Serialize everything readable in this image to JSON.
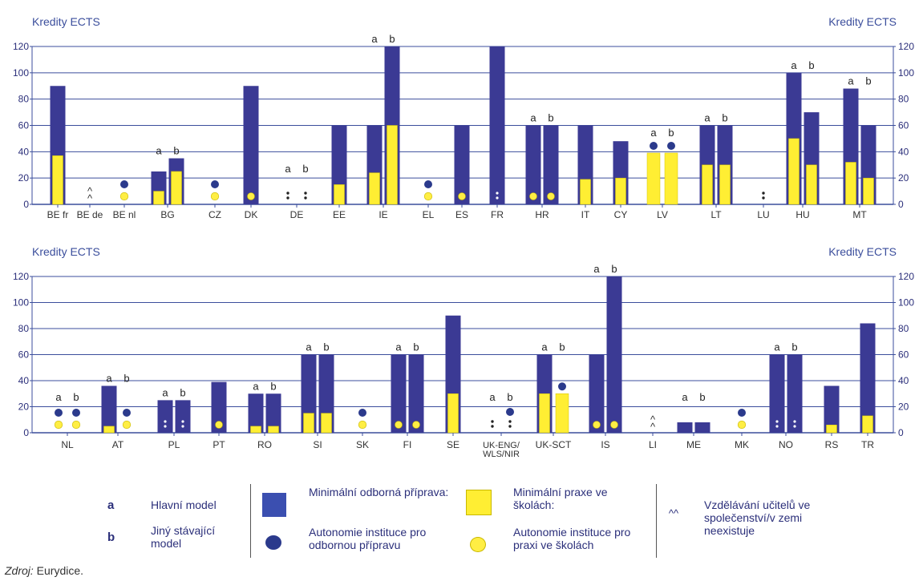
{
  "colors": {
    "bar": "#3b3a94",
    "practice": "#ffee33",
    "axis": "#3b4e9c",
    "text": "#2b2f7a",
    "dot_dark": "#2b3a8c",
    "dot_yellow": "#ffee44"
  },
  "chart_data": [
    {
      "type": "bar",
      "ylabel_left": "Kredity ECTS",
      "ylabel_right": "Kredity ECTS",
      "ylim": [
        0,
        120
      ],
      "yticks": [
        0,
        20,
        40,
        60,
        80,
        100,
        120
      ],
      "grid": true,
      "categories": [
        {
          "label": "BE fr",
          "bars": [
            {
              "total": 90,
              "practice": 37
            }
          ]
        },
        {
          "label": "BE de",
          "not_exist": true
        },
        {
          "label": "BE nl",
          "symbols": [
            {
              "dark": true,
              "yellow": true
            }
          ]
        },
        {
          "label": "BG",
          "sublabels": [
            "a",
            "b"
          ],
          "bars": [
            {
              "total": 25,
              "practice": 10
            },
            {
              "total": 35,
              "practice": 25
            }
          ]
        },
        {
          "label": "CZ",
          "symbols": [
            {
              "dark": true,
              "yellow": true
            }
          ]
        },
        {
          "label": "DK",
          "bars": [
            {
              "total": 90,
              "practice": 0,
              "yellow_dot": true
            }
          ]
        },
        {
          "label": "DE",
          "sublabels": [
            "a",
            "b"
          ],
          "symbols": [
            {
              "colon": true
            },
            {
              "colon": true
            }
          ]
        },
        {
          "label": "EE",
          "bars": [
            {
              "total": 60,
              "practice": 15
            }
          ]
        },
        {
          "label": "IE",
          "sublabels": [
            "a",
            "b"
          ],
          "bars": [
            {
              "total": 60,
              "practice": 24
            },
            {
              "total": 120,
              "practice": 60
            }
          ]
        },
        {
          "label": "EL",
          "symbols": [
            {
              "dark": true,
              "yellow": true
            }
          ]
        },
        {
          "label": "ES",
          "bars": [
            {
              "total": 60,
              "practice": 0,
              "yellow_dot": true
            }
          ]
        },
        {
          "label": "FR",
          "bars": [
            {
              "total": 120,
              "practice": 0,
              "colon": true
            }
          ]
        },
        {
          "label": "HR",
          "sublabels": [
            "a",
            "b"
          ],
          "bars": [
            {
              "total": 60,
              "practice": 0,
              "yellow_dot": true
            },
            {
              "total": 60,
              "practice": 0,
              "yellow_dot": true
            }
          ]
        },
        {
          "label": "IT",
          "bars": [
            {
              "total": 60,
              "practice": 19
            }
          ]
        },
        {
          "label": "CY",
          "bars": [
            {
              "total": 48,
              "practice": 20
            }
          ]
        },
        {
          "label": "LV",
          "sublabels": [
            "a",
            "b"
          ],
          "bars": [
            {
              "total": 0,
              "practice": 39,
              "dark_dot": true
            },
            {
              "total": 0,
              "practice": 39,
              "dark_dot": true
            }
          ]
        },
        {
          "label": "LT",
          "sublabels": [
            "a",
            "b"
          ],
          "bars": [
            {
              "total": 60,
              "practice": 30
            },
            {
              "total": 60,
              "practice": 30
            }
          ]
        },
        {
          "label": "LU",
          "symbols": [
            {
              "colon": true
            }
          ]
        },
        {
          "label": "HU",
          "sublabels": [
            "a",
            "b"
          ],
          "bars": [
            {
              "total": 100,
              "practice": 50
            },
            {
              "total": 70,
              "practice": 30
            }
          ]
        },
        {
          "label": "MT",
          "sublabels": [
            "a",
            "b"
          ],
          "bars": [
            {
              "total": 88,
              "practice": 32
            },
            {
              "total": 60,
              "practice": 20
            }
          ]
        }
      ]
    },
    {
      "type": "bar",
      "ylabel_left": "Kredity ECTS",
      "ylabel_right": "Kredity ECTS",
      "ylim": [
        0,
        120
      ],
      "yticks": [
        0,
        20,
        40,
        60,
        80,
        100,
        120
      ],
      "grid": true,
      "categories": [
        {
          "label": "NL",
          "sublabels": [
            "a",
            "b"
          ],
          "symbols": [
            {
              "dark": true,
              "yellow": true
            },
            {
              "dark": true,
              "yellow": true
            }
          ]
        },
        {
          "label": "AT",
          "sublabels": [
            "a",
            "b"
          ],
          "bars": [
            {
              "total": 36,
              "practice": 5
            }
          ],
          "symbols": [
            {
              "dark": true,
              "yellow": true
            }
          ]
        },
        {
          "label": "PL",
          "sublabels": [
            "a",
            "b"
          ],
          "bars": [
            {
              "total": 25,
              "practice": 0,
              "colon": true
            },
            {
              "total": 25,
              "practice": 0,
              "colon": true
            }
          ]
        },
        {
          "label": "PT",
          "bars": [
            {
              "total": 39,
              "practice": 0,
              "yellow_dot": true
            }
          ]
        },
        {
          "label": "RO",
          "sublabels": [
            "a",
            "b"
          ],
          "bars": [
            {
              "total": 30,
              "practice": 5
            },
            {
              "total": 30,
              "practice": 5
            }
          ]
        },
        {
          "label": "SI",
          "sublabels": [
            "a",
            "b"
          ],
          "bars": [
            {
              "total": 60,
              "practice": 15
            },
            {
              "total": 60,
              "practice": 15
            }
          ]
        },
        {
          "label": "SK",
          "symbols": [
            {
              "dark": true,
              "yellow": true
            }
          ]
        },
        {
          "label": "FI",
          "sublabels": [
            "a",
            "b"
          ],
          "bars": [
            {
              "total": 60,
              "practice": 0,
              "yellow_dot": true
            },
            {
              "total": 60,
              "practice": 0,
              "yellow_dot": true
            }
          ]
        },
        {
          "label": "SE",
          "bars": [
            {
              "total": 90,
              "practice": 30
            }
          ]
        },
        {
          "label": "UK-ENG/\nWLS/NIR",
          "sublabels": [
            "a",
            "b"
          ],
          "symbols": [
            {
              "colon": true
            },
            {
              "dark": true,
              "colon": true
            }
          ]
        },
        {
          "label": "UK-SCT",
          "sublabels": [
            "a",
            "b"
          ],
          "bars": [
            {
              "total": 60,
              "practice": 30
            },
            {
              "total": 0,
              "practice": 30,
              "dark_dot": true
            }
          ]
        },
        {
          "label": "IS",
          "sublabels": [
            "a",
            "b"
          ],
          "bars": [
            {
              "total": 60,
              "practice": 0,
              "yellow_dot": true
            },
            {
              "total": 120,
              "practice": 0,
              "yellow_dot": true
            }
          ]
        },
        {
          "label": "LI",
          "not_exist": true
        },
        {
          "label": "ME",
          "sublabels": [
            "a",
            "b"
          ],
          "bars": [
            {
              "total": 8,
              "practice": 0
            },
            {
              "total": 8,
              "practice": 0
            }
          ]
        },
        {
          "label": "MK",
          "symbols": [
            {
              "dark": true,
              "yellow": true
            }
          ]
        },
        {
          "label": "NO",
          "sublabels": [
            "a",
            "b"
          ],
          "bars": [
            {
              "total": 60,
              "practice": 0,
              "colon": true
            },
            {
              "total": 60,
              "practice": 0,
              "colon": true
            }
          ]
        },
        {
          "label": "RS",
          "bars": [
            {
              "total": 36,
              "practice": 6
            }
          ]
        },
        {
          "label": "TR",
          "bars": [
            {
              "total": 84,
              "practice": 13
            }
          ]
        }
      ]
    }
  ],
  "legend": {
    "a_letter": "a",
    "a_text": "Hlavní model",
    "b_letter": "b",
    "b_text": "Jiný stávající model",
    "prep_text": "Minimální odborná příprava:",
    "prep_auto_text": "Autonomie instituce pro odbornou přípravu",
    "practice_text": "Minimální praxe ve školách:",
    "practice_auto_text": "Autonomie instituce pro praxi ve školách",
    "noexist_symbol": "^^",
    "noexist_text": "Vzdělávání učitelů ve společenství/v zemi neexistuje"
  },
  "source": {
    "label": "Zdroj:",
    "value": " Eurydice."
  }
}
